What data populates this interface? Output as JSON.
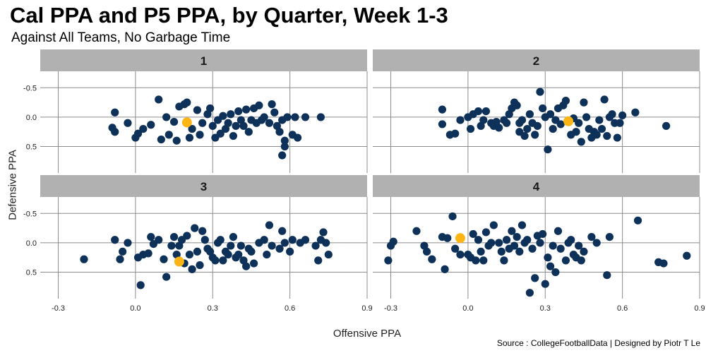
{
  "chart_data": {
    "type": "scatter",
    "title": "Cal PPA and P5 PPA, by Quarter, Week 1-3",
    "subtitle": "Against All Teams, No Garbage Time",
    "xlabel": "Offensive PPA",
    "ylabel": "Defensive PPA",
    "caption": "Source : CollegeFootballData | Designed by Piotr T Le",
    "xlim": [
      -0.37,
      0.9
    ],
    "x_ticks": [
      -0.3,
      0.0,
      0.3,
      0.6,
      0.9
    ],
    "x_tick_labels": [
      "-0.3",
      "0.0",
      "0.3",
      "0.6",
      "0.9"
    ],
    "ylim": [
      -0.78,
      0.95
    ],
    "y_reversed": true,
    "y_ticks": [
      -0.5,
      0.0,
      0.5
    ],
    "y_tick_labels": [
      "-0.5",
      "0.0",
      "0.5"
    ],
    "colors": {
      "other": "#0d3158",
      "cal": "#fdb515",
      "strip": "#b1b1b1",
      "grid": "#8c8c8c"
    },
    "panels": [
      {
        "label": "1",
        "cal": [
          [
            0.2,
            0.09
          ]
        ],
        "points": [
          [
            -0.08,
            -0.08
          ],
          [
            -0.09,
            0.18
          ],
          [
            -0.08,
            0.25
          ],
          [
            -0.03,
            0.1
          ],
          [
            0.01,
            0.28
          ],
          [
            0.0,
            0.35
          ],
          [
            0.03,
            0.2
          ],
          [
            0.06,
            0.13
          ],
          [
            0.09,
            -0.3
          ],
          [
            0.1,
            0.38
          ],
          [
            0.12,
            0.0
          ],
          [
            0.13,
            0.3
          ],
          [
            0.15,
            0.08
          ],
          [
            0.16,
            0.4
          ],
          [
            0.17,
            -0.18
          ],
          [
            0.19,
            -0.22
          ],
          [
            0.2,
            -0.25
          ],
          [
            0.21,
            0.35
          ],
          [
            0.22,
            0.2
          ],
          [
            0.24,
            -0.12
          ],
          [
            0.25,
            0.3
          ],
          [
            0.26,
            0.1
          ],
          [
            0.28,
            -0.05
          ],
          [
            0.29,
            -0.15
          ],
          [
            0.3,
            0.15
          ],
          [
            0.31,
            0.35
          ],
          [
            0.32,
            0.05
          ],
          [
            0.33,
            0.28
          ],
          [
            0.34,
            -0.02
          ],
          [
            0.35,
            0.2
          ],
          [
            0.36,
            0.1
          ],
          [
            0.37,
            -0.05
          ],
          [
            0.38,
            0.32
          ],
          [
            0.39,
            0.15
          ],
          [
            0.4,
            -0.1
          ],
          [
            0.41,
            0.05
          ],
          [
            0.42,
            0.15
          ],
          [
            0.43,
            -0.13
          ],
          [
            0.44,
            0.25
          ],
          [
            0.45,
            0.05
          ],
          [
            0.46,
            -0.15
          ],
          [
            0.47,
            0.1
          ],
          [
            0.48,
            -0.2
          ],
          [
            0.49,
            0.05
          ],
          [
            0.5,
            0.0
          ],
          [
            0.52,
            0.1
          ],
          [
            0.53,
            -0.22
          ],
          [
            0.54,
            -0.08
          ],
          [
            0.55,
            0.15
          ],
          [
            0.56,
            0.25
          ],
          [
            0.57,
            0.05
          ],
          [
            0.57,
            0.65
          ],
          [
            0.58,
            0.4
          ],
          [
            0.58,
            0.5
          ],
          [
            0.59,
            0.0
          ],
          [
            0.61,
            0.3
          ],
          [
            0.62,
            0.0
          ],
          [
            0.63,
            0.35
          ],
          [
            0.66,
            0.0
          ],
          [
            0.72,
            0.0
          ]
        ]
      },
      {
        "label": "2",
        "cal": [
          [
            0.39,
            0.07
          ]
        ],
        "points": [
          [
            -0.1,
            -0.13
          ],
          [
            -0.1,
            0.12
          ],
          [
            -0.07,
            0.3
          ],
          [
            -0.05,
            0.28
          ],
          [
            -0.03,
            0.05
          ],
          [
            0.0,
            0.0
          ],
          [
            0.01,
            0.2
          ],
          [
            0.02,
            -0.05
          ],
          [
            0.04,
            -0.1
          ],
          [
            0.05,
            0.15
          ],
          [
            0.06,
            0.05
          ],
          [
            0.07,
            -0.1
          ],
          [
            0.09,
            0.1
          ],
          [
            0.1,
            0.15
          ],
          [
            0.11,
            0.08
          ],
          [
            0.12,
            0.18
          ],
          [
            0.14,
            0.05
          ],
          [
            0.15,
            0.1
          ],
          [
            0.16,
            -0.05
          ],
          [
            0.17,
            -0.15
          ],
          [
            0.18,
            -0.25
          ],
          [
            0.19,
            -0.2
          ],
          [
            0.2,
            0.1
          ],
          [
            0.2,
            0.25
          ],
          [
            0.21,
            0.05
          ],
          [
            0.22,
            0.32
          ],
          [
            0.23,
            0.2
          ],
          [
            0.24,
            -0.05
          ],
          [
            0.25,
            0.1
          ],
          [
            0.26,
            0.3
          ],
          [
            0.27,
            0.15
          ],
          [
            0.28,
            -0.43
          ],
          [
            0.29,
            -0.15
          ],
          [
            0.3,
            0.0
          ],
          [
            0.31,
            0.55
          ],
          [
            0.32,
            -0.05
          ],
          [
            0.33,
            0.2
          ],
          [
            0.34,
            0.05
          ],
          [
            0.35,
            -0.15
          ],
          [
            0.36,
            0.12
          ],
          [
            0.37,
            -0.2
          ],
          [
            0.38,
            -0.28
          ],
          [
            0.4,
            0.3
          ],
          [
            0.41,
            0.02
          ],
          [
            0.42,
            0.25
          ],
          [
            0.43,
            0.1
          ],
          [
            0.44,
            0.42
          ],
          [
            0.45,
            -0.25
          ],
          [
            0.46,
            0.0
          ],
          [
            0.47,
            0.2
          ],
          [
            0.48,
            0.35
          ],
          [
            0.49,
            0.25
          ],
          [
            0.5,
            0.3
          ],
          [
            0.51,
            0.05
          ],
          [
            0.52,
            0.2
          ],
          [
            0.53,
            -0.3
          ],
          [
            0.54,
            0.32
          ],
          [
            0.55,
            0.0
          ],
          [
            0.56,
            -0.05
          ],
          [
            0.57,
            0.1
          ],
          [
            0.58,
            0.35
          ],
          [
            0.59,
            0.1
          ],
          [
            0.6,
            -0.03
          ],
          [
            0.65,
            -0.08
          ],
          [
            0.77,
            0.15
          ]
        ]
      },
      {
        "label": "3",
        "cal": [
          [
            0.17,
            0.32
          ]
        ],
        "points": [
          [
            -0.2,
            0.28
          ],
          [
            -0.08,
            -0.05
          ],
          [
            -0.06,
            0.28
          ],
          [
            -0.05,
            0.15
          ],
          [
            -0.03,
            0.0
          ],
          [
            0.01,
            0.25
          ],
          [
            0.02,
            0.72
          ],
          [
            0.03,
            0.2
          ],
          [
            0.05,
            0.18
          ],
          [
            0.06,
            -0.1
          ],
          [
            0.07,
            0.02
          ],
          [
            0.09,
            -0.05
          ],
          [
            0.11,
            0.28
          ],
          [
            0.12,
            0.58
          ],
          [
            0.14,
            0.05
          ],
          [
            0.15,
            -0.1
          ],
          [
            0.16,
            0.2
          ],
          [
            0.17,
            0.05
          ],
          [
            0.18,
            -0.05
          ],
          [
            0.19,
            0.35
          ],
          [
            0.2,
            -0.12
          ],
          [
            0.21,
            0.2
          ],
          [
            0.22,
            0.45
          ],
          [
            0.23,
            -0.25
          ],
          [
            0.24,
            0.15
          ],
          [
            0.25,
            0.38
          ],
          [
            0.26,
            -0.2
          ],
          [
            0.27,
            -0.05
          ],
          [
            0.28,
            0.1
          ],
          [
            0.29,
            0.15
          ],
          [
            0.3,
            0.25
          ],
          [
            0.31,
            0.3
          ],
          [
            0.32,
            0.0
          ],
          [
            0.33,
            -0.05
          ],
          [
            0.34,
            0.3
          ],
          [
            0.35,
            0.15
          ],
          [
            0.36,
            0.2
          ],
          [
            0.37,
            0.05
          ],
          [
            0.38,
            -0.1
          ],
          [
            0.39,
            0.25
          ],
          [
            0.4,
            0.2
          ],
          [
            0.41,
            0.05
          ],
          [
            0.42,
            0.3
          ],
          [
            0.43,
            0.4
          ],
          [
            0.44,
            0.1
          ],
          [
            0.45,
            0.15
          ],
          [
            0.46,
            0.35
          ],
          [
            0.48,
            0.0
          ],
          [
            0.5,
            -0.05
          ],
          [
            0.51,
            0.2
          ],
          [
            0.52,
            -0.3
          ],
          [
            0.53,
            0.05
          ],
          [
            0.56,
            0.1
          ],
          [
            0.57,
            -0.2
          ],
          [
            0.58,
            0.0
          ],
          [
            0.6,
            0.15
          ],
          [
            0.61,
            -0.05
          ],
          [
            0.64,
            0.0
          ],
          [
            0.66,
            -0.05
          ],
          [
            0.7,
            0.05
          ],
          [
            0.71,
            0.3
          ],
          [
            0.72,
            -0.05
          ],
          [
            0.73,
            -0.18
          ],
          [
            0.74,
            0.0
          ],
          [
            0.75,
            0.2
          ]
        ]
      },
      {
        "label": "4",
        "cal": [
          [
            -0.03,
            -0.08
          ]
        ],
        "points": [
          [
            -0.31,
            0.3
          ],
          [
            -0.3,
            0.05
          ],
          [
            -0.29,
            -0.02
          ],
          [
            -0.2,
            -0.2
          ],
          [
            -0.17,
            0.05
          ],
          [
            -0.16,
            0.15
          ],
          [
            -0.14,
            0.28
          ],
          [
            -0.1,
            -0.1
          ],
          [
            -0.09,
            0.45
          ],
          [
            -0.08,
            -0.08
          ],
          [
            -0.06,
            -0.45
          ],
          [
            -0.05,
            0.1
          ],
          [
            -0.03,
            0.2
          ],
          [
            0.0,
            0.2
          ],
          [
            0.01,
            0.25
          ],
          [
            0.02,
            -0.15
          ],
          [
            0.03,
            0.3
          ],
          [
            0.04,
            -0.05
          ],
          [
            0.05,
            0.15
          ],
          [
            0.06,
            0.3
          ],
          [
            0.07,
            -0.18
          ],
          [
            0.08,
            0.05
          ],
          [
            0.09,
            0.0
          ],
          [
            0.1,
            -0.3
          ],
          [
            0.12,
            0.0
          ],
          [
            0.13,
            0.15
          ],
          [
            0.14,
            0.3
          ],
          [
            0.15,
            -0.05
          ],
          [
            0.16,
            0.1
          ],
          [
            0.17,
            -0.2
          ],
          [
            0.18,
            0.05
          ],
          [
            0.19,
            -0.1
          ],
          [
            0.2,
            0.15
          ],
          [
            0.21,
            -0.3
          ],
          [
            0.22,
            0.0
          ],
          [
            0.23,
            -0.05
          ],
          [
            0.24,
            0.85
          ],
          [
            0.25,
            0.1
          ],
          [
            0.26,
            0.6
          ],
          [
            0.27,
            -0.12
          ],
          [
            0.28,
            0.0
          ],
          [
            0.29,
            -0.15
          ],
          [
            0.3,
            0.7
          ],
          [
            0.31,
            0.25
          ],
          [
            0.32,
            0.4
          ],
          [
            0.33,
            0.05
          ],
          [
            0.34,
            0.5
          ],
          [
            0.35,
            -0.2
          ],
          [
            0.36,
            0.1
          ],
          [
            0.38,
            0.3
          ],
          [
            0.39,
            0.0
          ],
          [
            0.4,
            -0.05
          ],
          [
            0.41,
            0.2
          ],
          [
            0.42,
            0.25
          ],
          [
            0.43,
            0.05
          ],
          [
            0.44,
            0.3
          ],
          [
            0.45,
            0.15
          ],
          [
            0.48,
            -0.1
          ],
          [
            0.5,
            0.0
          ],
          [
            0.54,
            0.55
          ],
          [
            0.55,
            -0.1
          ],
          [
            0.66,
            -0.38
          ],
          [
            0.74,
            0.33
          ],
          [
            0.76,
            0.35
          ],
          [
            0.85,
            0.22
          ]
        ]
      }
    ]
  }
}
